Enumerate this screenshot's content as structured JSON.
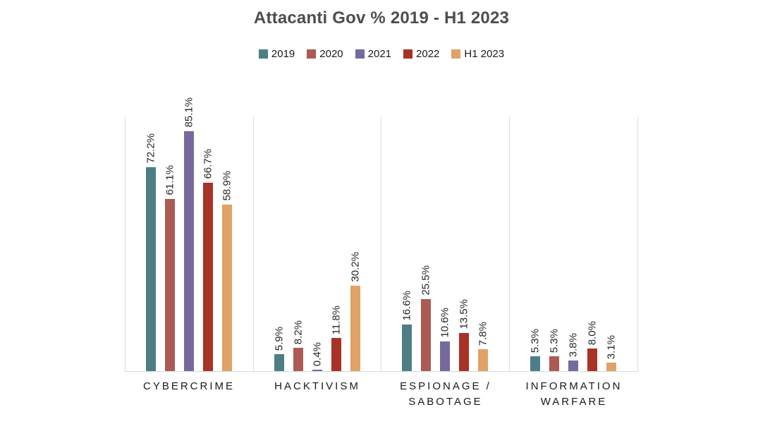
{
  "title": "Attacanti Gov % 2019 - H1 2023",
  "colors": {
    "background": "#ffffff",
    "title_text": "#4d4d4d",
    "value_label_text": "#262626",
    "category_label_text": "#1a1a1a",
    "grid_line": "#dfdfdf",
    "baseline": "#d9d9d9"
  },
  "chart_data": {
    "type": "bar",
    "title": "Attacanti Gov % 2019 - H1 2023",
    "xlabel": "",
    "ylabel": "",
    "ylim": [
      0,
      90.5
    ],
    "grid": "vertical-category-separators-only",
    "legend_position": "top",
    "value_label_style": "rotated-90-above-bar, percent with one decimal",
    "categories": [
      "CYBERCRIME",
      "HACKTIVISM",
      "ESPIONAGE /\nSABOTAGE",
      "INFORMATION\nWARFARE"
    ],
    "series": [
      {
        "name": "2019",
        "color": "#4d7e86",
        "values": [
          72.2,
          5.9,
          16.6,
          5.3
        ]
      },
      {
        "name": "2020",
        "color": "#ac5a52",
        "values": [
          61.1,
          8.2,
          25.5,
          5.3
        ]
      },
      {
        "name": "2021",
        "color": "#76699e",
        "values": [
          85.1,
          0.4,
          10.6,
          3.8
        ]
      },
      {
        "name": "2022",
        "color": "#a93226",
        "values": [
          66.7,
          11.8,
          13.5,
          8.0
        ]
      },
      {
        "name": "H1 2023",
        "color": "#e0a266",
        "values": [
          58.9,
          30.2,
          7.8,
          3.1
        ]
      }
    ],
    "data_labels": [
      [
        "72.2%",
        "5.9%",
        "16.6%",
        "5.3%"
      ],
      [
        "61.1%",
        "8.2%",
        "25.5%",
        "5.3%"
      ],
      [
        "85.1%",
        "0.4%",
        "10.6%",
        "3.8%"
      ],
      [
        "66.7%",
        "11.8%",
        "13.5%",
        "8.0%"
      ],
      [
        "58.9%",
        "30.2%",
        "7.8%",
        "3.1%"
      ]
    ]
  }
}
